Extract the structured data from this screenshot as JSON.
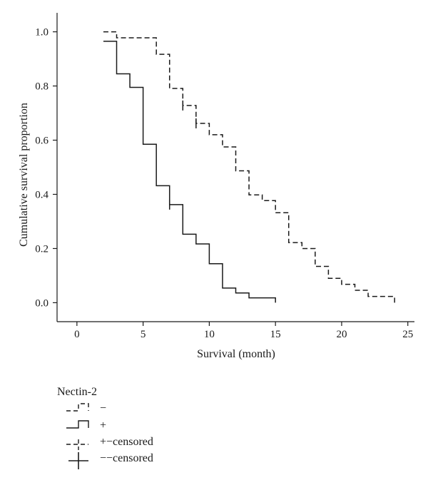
{
  "chart_data": {
    "type": "line",
    "subtype": "kaplan-meier step",
    "title": "",
    "xlabel": "Survival (month)",
    "ylabel": "Cumulative survival proportion",
    "xlim": [
      -1.5,
      25.5
    ],
    "ylim": [
      -0.07,
      1.07
    ],
    "xticks": [
      0,
      5,
      10,
      15,
      20,
      25
    ],
    "yticks": [
      0.0,
      0.2,
      0.4,
      0.6,
      0.8,
      1.0
    ],
    "tick_labels_y": [
      "0.0",
      "0.2",
      "0.4",
      "0.6",
      "0.8",
      "1.0"
    ],
    "grid": false,
    "legend_position": "below plot",
    "legend_title": "Nectin-2",
    "series": [
      {
        "name": "−",
        "style": "dashed",
        "color": "#1a1a1a",
        "steps": [
          [
            2,
            1.0
          ],
          [
            3,
            0.978
          ],
          [
            6,
            0.917
          ],
          [
            7,
            0.791
          ],
          [
            8,
            0.728
          ],
          [
            9,
            0.662
          ],
          [
            10,
            0.62
          ],
          [
            11,
            0.575
          ],
          [
            12,
            0.487
          ],
          [
            13,
            0.398
          ],
          [
            14,
            0.377
          ],
          [
            15,
            0.332
          ],
          [
            16,
            0.222
          ],
          [
            17,
            0.2
          ],
          [
            18,
            0.134
          ],
          [
            19,
            0.09
          ],
          [
            20,
            0.068
          ],
          [
            21,
            0.046
          ],
          [
            22,
            0.023
          ],
          [
            24,
            0.0
          ]
        ],
        "end_x": 24
      },
      {
        "name": "+",
        "style": "solid",
        "color": "#1a1a1a",
        "steps": [
          [
            2,
            0.965
          ],
          [
            3,
            0.845
          ],
          [
            4,
            0.795
          ],
          [
            5,
            0.585
          ],
          [
            6,
            0.432
          ],
          [
            7,
            0.362
          ],
          [
            8,
            0.253
          ],
          [
            9,
            0.217
          ],
          [
            10,
            0.144
          ],
          [
            11,
            0.054
          ],
          [
            12,
            0.036
          ],
          [
            13,
            0.018
          ]
        ],
        "end_x": 15,
        "end_y": 0.0
      }
    ],
    "censored": [
      {
        "series": "−",
        "points": [
          [
            8,
            0.728
          ],
          [
            9,
            0.662
          ]
        ]
      },
      {
        "series": "+",
        "points": [
          [
            7,
            0.362
          ]
        ]
      }
    ]
  },
  "legend": {
    "title": "Nectin-2",
    "items": [
      {
        "symbol": "dashed-step",
        "label": "−"
      },
      {
        "symbol": "solid-step",
        "label": "+"
      },
      {
        "symbol": "dashed-censor",
        "label": "+−censored"
      },
      {
        "symbol": "solid-censor",
        "label": "−−censored"
      }
    ]
  }
}
